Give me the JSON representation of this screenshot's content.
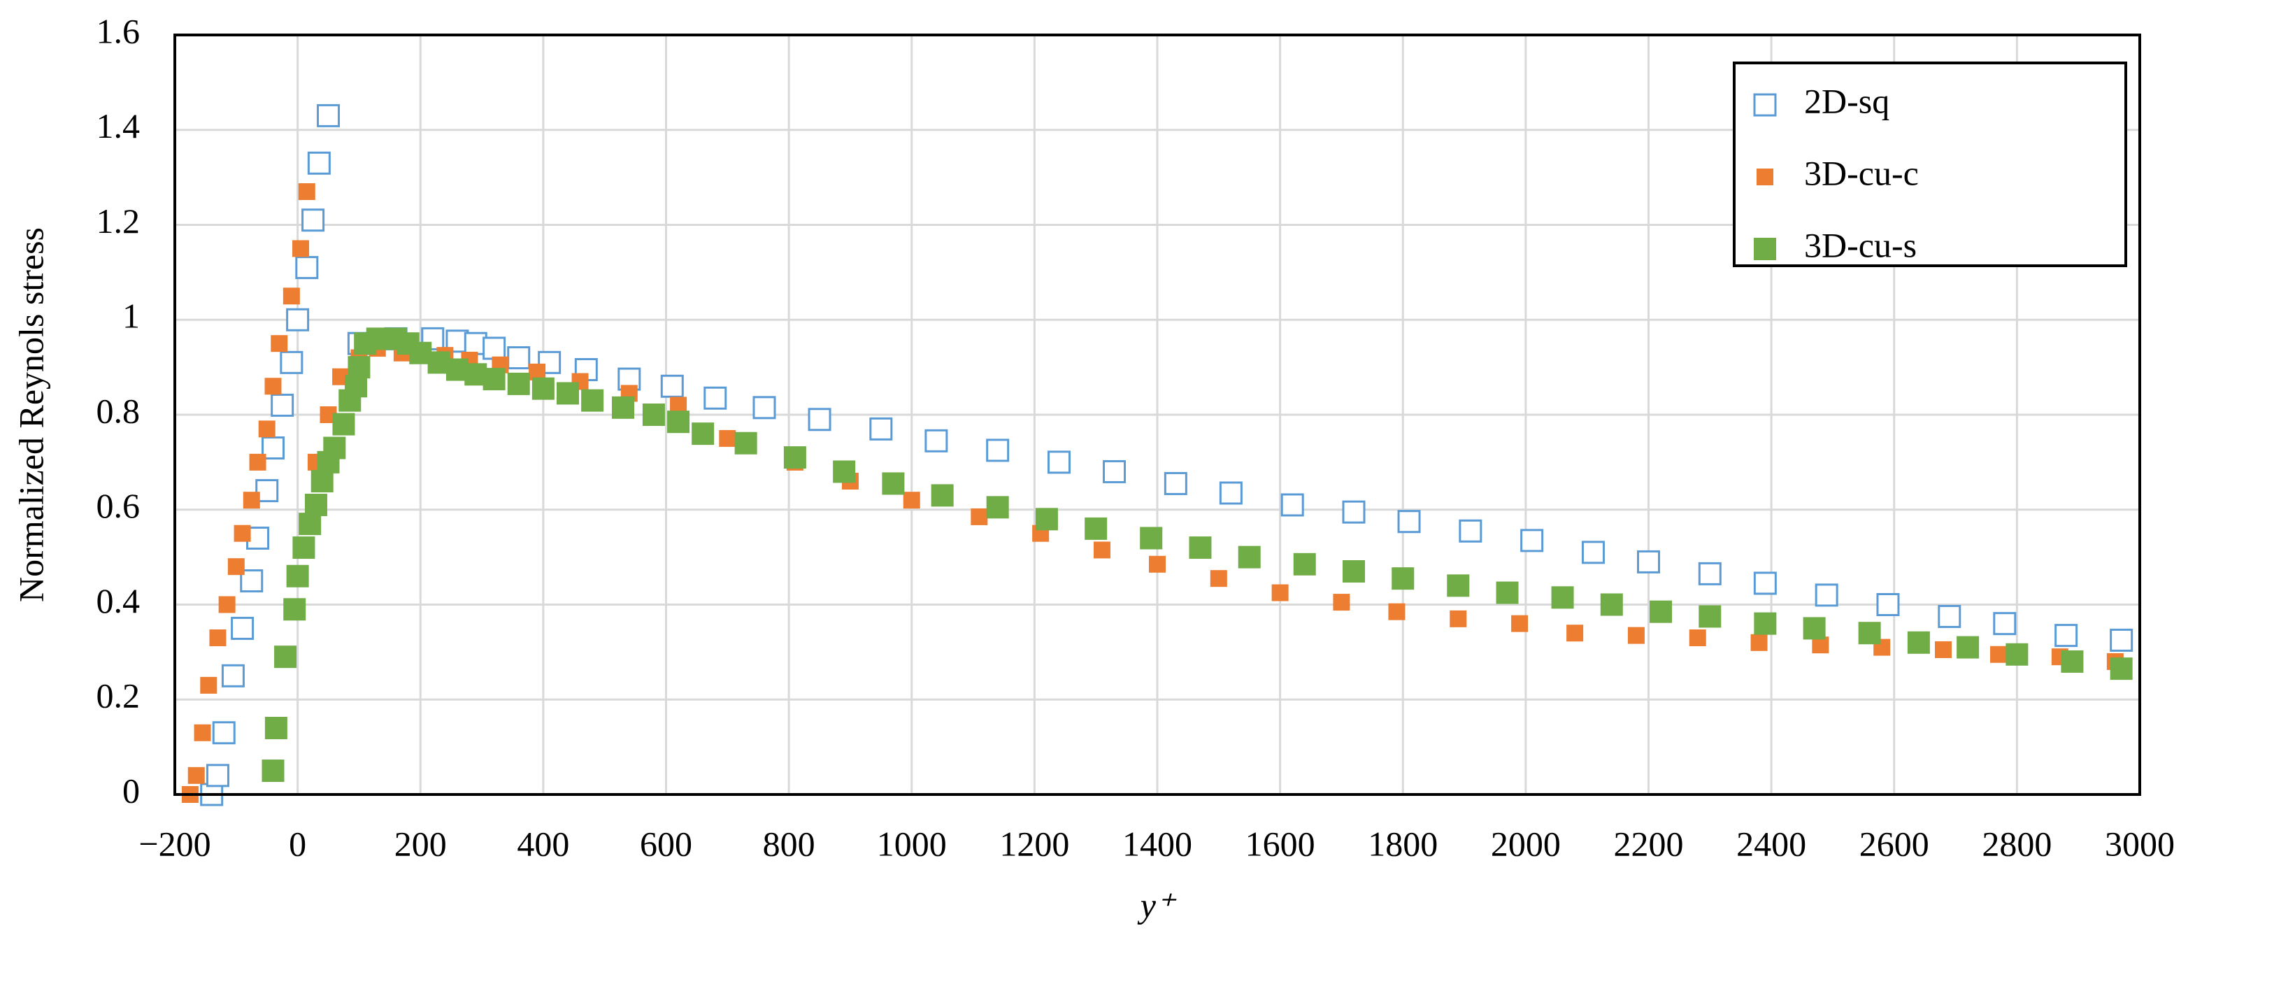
{
  "chart_data": {
    "type": "scatter",
    "xlabel": "y⁺",
    "ylabel": "Normalized Reynols stress",
    "xlim": [
      -200,
      3000
    ],
    "xticks": [
      {
        "value": -200,
        "label": "−200"
      },
      0,
      200,
      400,
      600,
      800,
      1000,
      1200,
      1400,
      1600,
      1800,
      2000,
      2200,
      2400,
      2600,
      2800,
      3000
    ],
    "ylim": [
      0,
      1.6
    ],
    "yticks": [
      0,
      0.2,
      0.4,
      0.6,
      0.8,
      1,
      1.2,
      1.4,
      1.6
    ],
    "grid": true,
    "legend": "upper right",
    "series": [
      {
        "name": "2D-sq",
        "color": "#5b9bd5",
        "marker": "open-square",
        "x": [
          -140,
          -130,
          -120,
          -105,
          -90,
          -75,
          -65,
          -50,
          -40,
          -25,
          -10,
          0,
          15,
          25,
          35,
          50,
          100,
          160,
          220,
          260,
          290,
          320,
          360,
          410,
          470,
          540,
          610,
          680,
          760,
          850,
          950,
          1040,
          1140,
          1240,
          1330,
          1430,
          1520,
          1620,
          1720,
          1810,
          1910,
          2010,
          2110,
          2200,
          2300,
          2390,
          2490,
          2590,
          2690,
          2780,
          2880,
          2970
        ],
        "values": [
          0,
          0.04,
          0.13,
          0.25,
          0.35,
          0.45,
          0.54,
          0.64,
          0.73,
          0.82,
          0.91,
          1.0,
          1.11,
          1.21,
          1.33,
          1.43,
          0.95,
          0.96,
          0.96,
          0.955,
          0.95,
          0.94,
          0.92,
          0.91,
          0.895,
          0.875,
          0.86,
          0.835,
          0.815,
          0.79,
          0.77,
          0.745,
          0.725,
          0.7,
          0.68,
          0.655,
          0.635,
          0.61,
          0.595,
          0.575,
          0.555,
          0.535,
          0.51,
          0.49,
          0.465,
          0.445,
          0.42,
          0.4,
          0.375,
          0.36,
          0.335,
          0.325
        ]
      },
      {
        "name": "3D-cu-c",
        "color": "#ed7d31",
        "marker": "small-square",
        "x": [
          -175,
          -165,
          -155,
          -145,
          -130,
          -115,
          -100,
          -90,
          -75,
          -65,
          -50,
          -40,
          -30,
          -10,
          5,
          15,
          30,
          50,
          70,
          100,
          130,
          170,
          200,
          240,
          280,
          330,
          390,
          460,
          540,
          620,
          700,
          810,
          900,
          1000,
          1110,
          1210,
          1310,
          1400,
          1500,
          1600,
          1700,
          1790,
          1890,
          1990,
          2080,
          2180,
          2280,
          2380,
          2480,
          2580,
          2680,
          2770,
          2870,
          2960
        ],
        "values": [
          0,
          0.04,
          0.13,
          0.23,
          0.33,
          0.4,
          0.48,
          0.55,
          0.62,
          0.7,
          0.77,
          0.86,
          0.95,
          1.05,
          1.15,
          1.27,
          0.7,
          0.8,
          0.88,
          0.92,
          0.94,
          0.93,
          0.93,
          0.925,
          0.915,
          0.905,
          0.89,
          0.87,
          0.845,
          0.82,
          0.75,
          0.7,
          0.66,
          0.62,
          0.585,
          0.55,
          0.515,
          0.485,
          0.455,
          0.425,
          0.405,
          0.385,
          0.37,
          0.36,
          0.34,
          0.335,
          0.33,
          0.32,
          0.315,
          0.31,
          0.305,
          0.295,
          0.29,
          0.28
        ]
      },
      {
        "name": "3D-cu-s",
        "color": "#70ad47",
        "marker": "square",
        "x": [
          -40,
          -35,
          -20,
          -5,
          0,
          10,
          20,
          30,
          40,
          50,
          60,
          75,
          85,
          95,
          100,
          110,
          130,
          160,
          180,
          200,
          230,
          260,
          290,
          320,
          360,
          400,
          440,
          480,
          530,
          580,
          620,
          660,
          730,
          810,
          890,
          970,
          1050,
          1140,
          1220,
          1300,
          1390,
          1470,
          1550,
          1640,
          1720,
          1800,
          1890,
          1970,
          2060,
          2140,
          2220,
          2300,
          2390,
          2470,
          2560,
          2640,
          2720,
          2800,
          2890,
          2970
        ],
        "values": [
          0.05,
          0.14,
          0.29,
          0.39,
          0.46,
          0.52,
          0.57,
          0.61,
          0.66,
          0.7,
          0.73,
          0.78,
          0.83,
          0.86,
          0.9,
          0.95,
          0.96,
          0.96,
          0.95,
          0.93,
          0.91,
          0.895,
          0.885,
          0.875,
          0.865,
          0.855,
          0.845,
          0.83,
          0.815,
          0.8,
          0.785,
          0.76,
          0.74,
          0.71,
          0.68,
          0.655,
          0.63,
          0.605,
          0.58,
          0.56,
          0.54,
          0.52,
          0.5,
          0.485,
          0.47,
          0.455,
          0.44,
          0.425,
          0.415,
          0.4,
          0.385,
          0.375,
          0.36,
          0.35,
          0.34,
          0.32,
          0.31,
          0.295,
          0.28,
          0.265
        ]
      }
    ]
  }
}
